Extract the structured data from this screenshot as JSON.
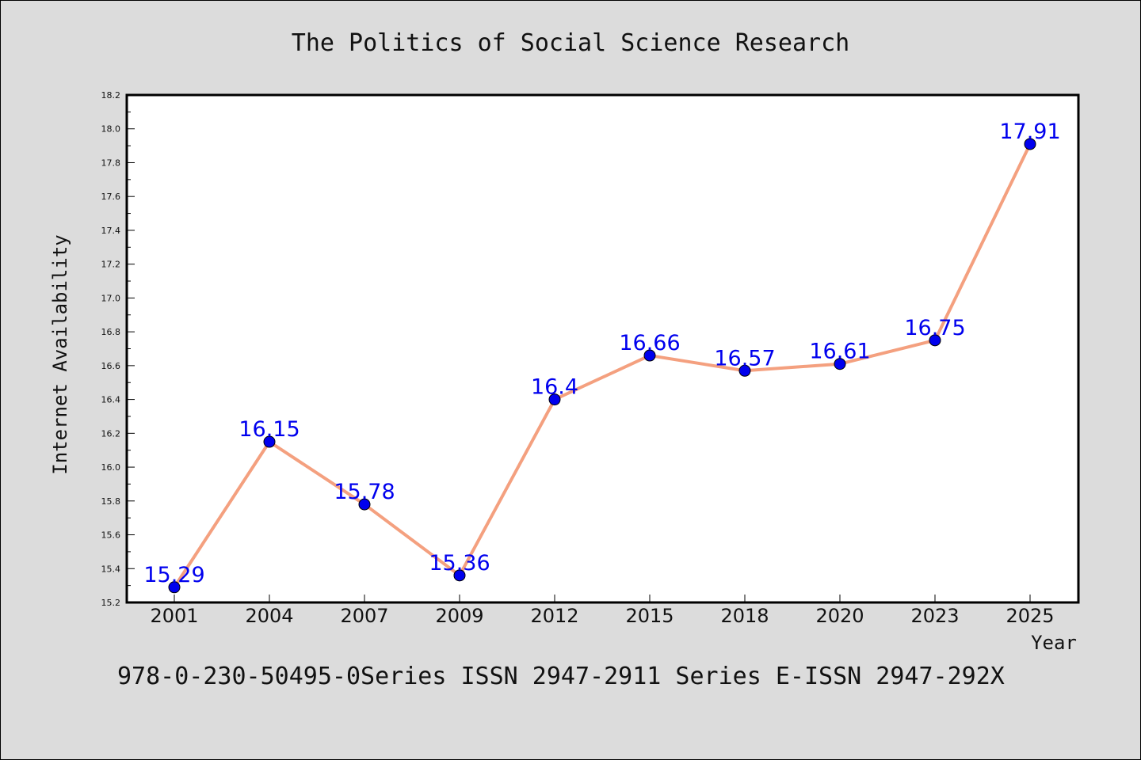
{
  "chart_data": {
    "type": "line",
    "title": "The Politics of Social Science Research",
    "xlabel": "Year",
    "ylabel": "Internet Availability",
    "categories": [
      "2001",
      "2004",
      "2007",
      "2009",
      "2012",
      "2015",
      "2018",
      "2020",
      "2023",
      "2025"
    ],
    "series": [
      {
        "values": [
          15.29,
          16.15,
          15.78,
          15.36,
          16.4,
          16.66,
          16.57,
          16.61,
          16.75,
          17.91
        ],
        "line_color": "#f4a07f",
        "marker_color": "#0000ee"
      }
    ],
    "data_labels": [
      "15.29",
      "16.15",
      "15.78",
      "15.36",
      "16.4",
      "16.66",
      "16.57",
      "16.61",
      "16.75",
      "17.91"
    ],
    "data_label_color": "#0000ee",
    "ylim": [
      15.2,
      18.2
    ],
    "yticks": [
      "15.2",
      "15.4",
      "15.6",
      "15.8",
      "16.0",
      "16.2",
      "16.4",
      "16.6",
      "16.8",
      "17.0",
      "17.2",
      "17.4",
      "17.6",
      "17.8",
      "18.0",
      "18.2"
    ],
    "grid": false
  },
  "footer": "978-0-230-50495-0Series ISSN 2947-2911 Series E-ISSN 2947-292X",
  "colors": {
    "background": "#dcdcdc",
    "plot_background": "#ffffff",
    "frame": "#000000"
  }
}
